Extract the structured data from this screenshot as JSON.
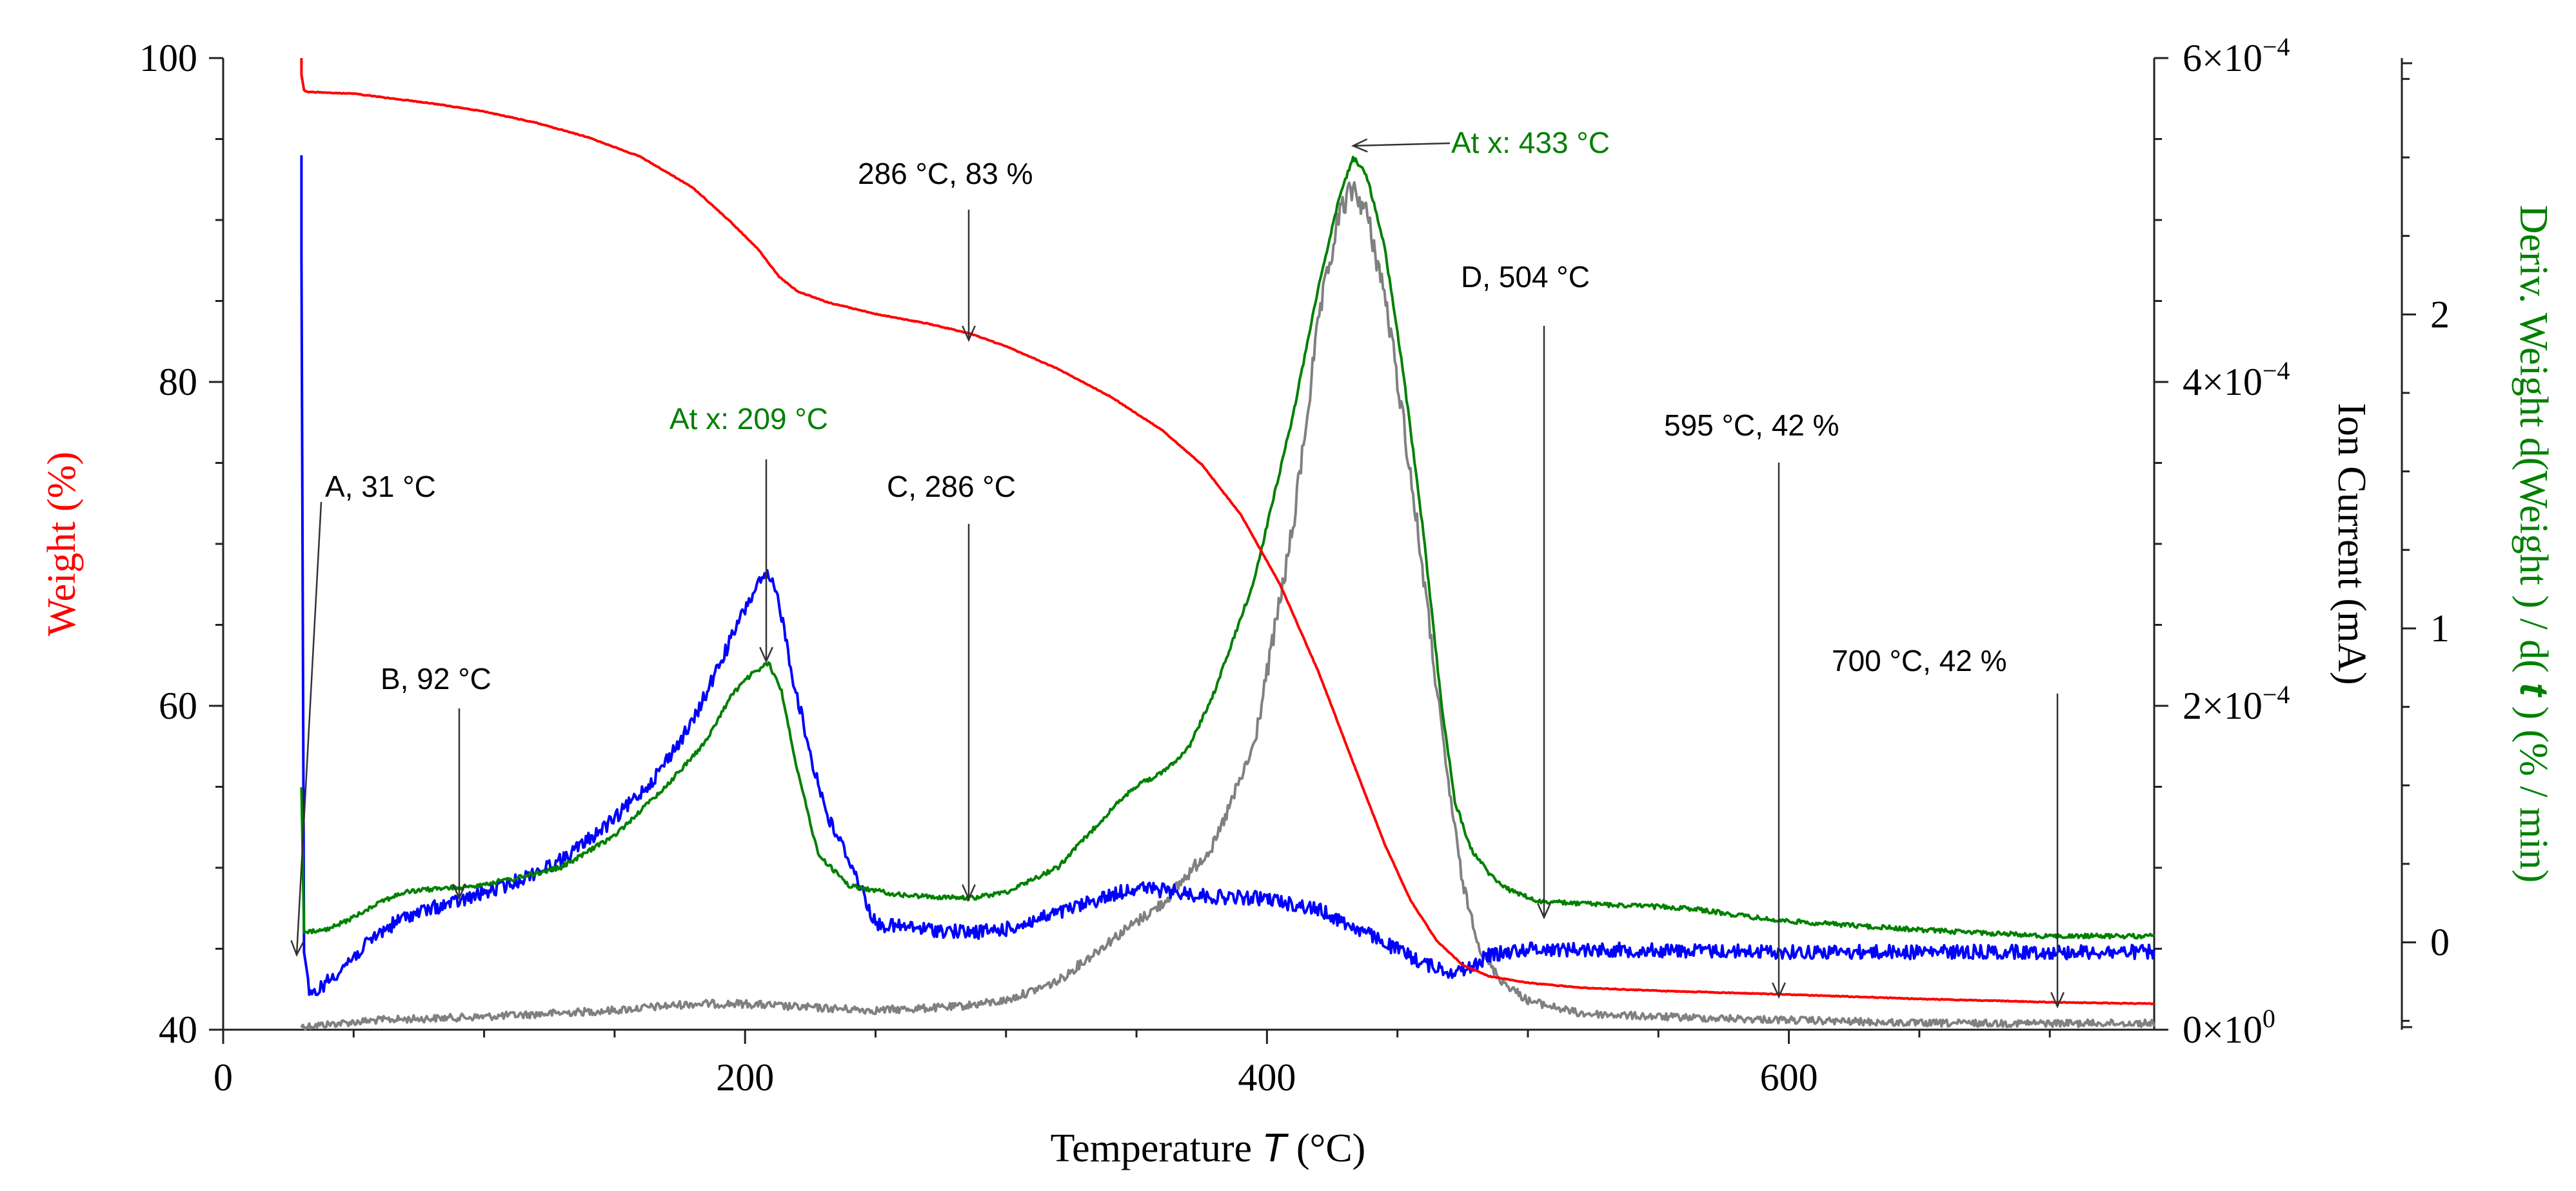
{
  "chart_data": {
    "type": "line",
    "title": "",
    "xlabel": "Temperature T (°C)",
    "xlabel_parts": {
      "prefix": "Temperature ",
      "var": "T",
      "suffix": " (°C)"
    },
    "xlim": [
      0,
      740
    ],
    "x_ticks": [
      0,
      200,
      400,
      600
    ],
    "y_left": {
      "label": "Weight  (%)",
      "range": [
        40,
        100
      ],
      "ticks": [
        40,
        60,
        80,
        100
      ],
      "color": "#ff0000"
    },
    "y_right1": {
      "label": "Ion Current (mA)",
      "range": [
        0,
        0.0006
      ],
      "ticks": [
        {
          "value": 0,
          "mantissa": "0×10",
          "exp": "0"
        },
        {
          "value": 0.0002,
          "mantissa": "2×10",
          "exp": "−4"
        },
        {
          "value": 0.0004,
          "mantissa": "4×10",
          "exp": "−4"
        },
        {
          "value": 0.0006,
          "mantissa": "6×10",
          "exp": "−4"
        }
      ],
      "color": "#000000"
    },
    "y_right2": {
      "label": "Deriv. Weight d(Weight ) / d(t) (% / min)",
      "label_parts": {
        "prefix": "Deriv. Weight d(Weight ) / d( ",
        "var": "t",
        "suffix": " )  (% / min)"
      },
      "range": [
        -0.27,
        2.8
      ],
      "ticks": [
        0,
        1,
        2
      ],
      "color": "#008000"
    },
    "series": [
      {
        "name": "Weight",
        "axis": "left",
        "color": "#ff0000",
        "x": [
          30,
          30,
          31,
          33,
          50,
          60,
          80,
          100,
          120,
          140,
          160,
          180,
          195,
          205,
          213,
          220,
          232,
          250,
          270,
          286,
          300,
          320,
          340,
          360,
          375,
          390,
          405,
          420,
          433,
          445,
          455,
          465,
          475,
          485,
          500,
          520,
          550,
          595,
          650,
          700,
          740
        ],
        "y": [
          100,
          99,
          98,
          97.9,
          97.8,
          97.6,
          97.2,
          96.7,
          96.0,
          95.1,
          93.9,
          92.0,
          89.8,
          88.2,
          86.5,
          85.6,
          84.9,
          84.2,
          83.6,
          83.0,
          82.2,
          80.8,
          79.1,
          77.0,
          74.9,
          71.8,
          67.5,
          62.0,
          56.5,
          51.5,
          48.0,
          45.5,
          44.0,
          43.3,
          42.9,
          42.6,
          42.4,
          42.2,
          41.9,
          41.7,
          41.6
        ]
      },
      {
        "name": "Ion Current (blue)",
        "axis": "right1",
        "color": "#0000ff",
        "x": [
          30,
          30,
          31,
          33,
          40,
          50,
          60,
          70,
          80,
          92,
          110,
          130,
          150,
          165,
          180,
          190,
          200,
          205,
          209,
          213,
          218,
          225,
          232,
          240,
          250,
          270,
          286,
          300,
          320,
          340,
          350,
          360,
          380,
          400,
          420,
          440,
          460,
          470,
          478,
          485,
          500,
          550,
          600,
          650,
          700,
          740
        ],
        "y": [
          0.00054,
          0.00048,
          5e-05,
          2e-05,
          3e-05,
          4.5e-05,
          6e-05,
          7e-05,
          7.5e-05,
          8e-05,
          9e-05,
          0.000105,
          0.00013,
          0.000155,
          0.00019,
          0.000225,
          0.00026,
          0.000275,
          0.00028,
          0.000265,
          0.00022,
          0.00017,
          0.00013,
          0.000105,
          6.5e-05,
          6.2e-05,
          6e-05,
          6.2e-05,
          7.2e-05,
          8.3e-05,
          8.8e-05,
          8.6e-05,
          8.2e-05,
          8.1e-05,
          7.4e-05,
          5.8e-05,
          4.1e-05,
          3.6e-05,
          3.8e-05,
          4.6e-05,
          5e-05,
          4.9e-05,
          4.8e-05,
          4.8e-05,
          4.8e-05,
          4.8e-05
        ]
      },
      {
        "name": "Ion Current (gray)",
        "axis": "right1",
        "color": "#808080",
        "x": [
          30,
          60,
          100,
          150,
          180,
          200,
          220,
          250,
          280,
          300,
          320,
          340,
          360,
          380,
          395,
          410,
          420,
          428,
          433,
          438,
          445,
          452,
          460,
          468,
          475,
          482,
          490,
          500,
          520,
          550,
          600,
          650,
          700,
          740
        ],
        "y": [
          2e-06,
          6e-06,
          8e-06,
          1.2e-05,
          1.6e-05,
          1.6e-05,
          1.4e-05,
          1.2e-05,
          1.4e-05,
          1.8e-05,
          3e-05,
          5.5e-05,
          7.8e-05,
          0.000115,
          0.000175,
          0.00031,
          0.00044,
          0.000505,
          0.00052,
          0.000505,
          0.000455,
          0.00038,
          0.00028,
          0.00017,
          9e-05,
          4.8e-05,
          3e-05,
          1.8e-05,
          1e-05,
          8e-06,
          6e-06,
          4e-06,
          4e-06,
          4e-06
        ]
      },
      {
        "name": "Deriv. Weight",
        "axis": "right2",
        "color": "#008000",
        "x": [
          30,
          31,
          40,
          50,
          60,
          70,
          80,
          92,
          110,
          130,
          150,
          170,
          185,
          195,
          202,
          209,
          214,
          220,
          228,
          240,
          260,
          286,
          300,
          320,
          340,
          350,
          360,
          370,
          380,
          395,
          410,
          420,
          428,
          433,
          438,
          445,
          452,
          460,
          467,
          472,
          478,
          485,
          492,
          504,
          530,
          560,
          595,
          650,
          700,
          740
        ],
        "y": [
          0.5,
          0.03,
          0.04,
          0.08,
          0.13,
          0.16,
          0.17,
          0.175,
          0.2,
          0.24,
          0.34,
          0.5,
          0.64,
          0.79,
          0.85,
          0.89,
          0.8,
          0.55,
          0.28,
          0.18,
          0.15,
          0.14,
          0.16,
          0.24,
          0.42,
          0.5,
          0.54,
          0.62,
          0.8,
          1.15,
          1.68,
          2.1,
          2.38,
          2.5,
          2.45,
          2.22,
          1.83,
          1.3,
          0.75,
          0.45,
          0.3,
          0.22,
          0.17,
          0.13,
          0.12,
          0.11,
          0.07,
          0.04,
          0.02,
          0.02
        ]
      }
    ],
    "annotations": [
      {
        "text": "A, 31 °C",
        "color": "#000000"
      },
      {
        "text": "B, 92 °C",
        "color": "#000000"
      },
      {
        "text": "At x: 209 °C",
        "color": "#008000"
      },
      {
        "text": "C, 286 °C",
        "color": "#000000"
      },
      {
        "text": "286 °C, 83 %",
        "color": "#000000"
      },
      {
        "text": "At x: 433 °C",
        "color": "#008000"
      },
      {
        "text": "D, 504 °C",
        "color": "#000000"
      },
      {
        "text": "595 °C, 42 %",
        "color": "#000000"
      },
      {
        "text": "700 °C, 42 %",
        "color": "#000000"
      }
    ]
  }
}
